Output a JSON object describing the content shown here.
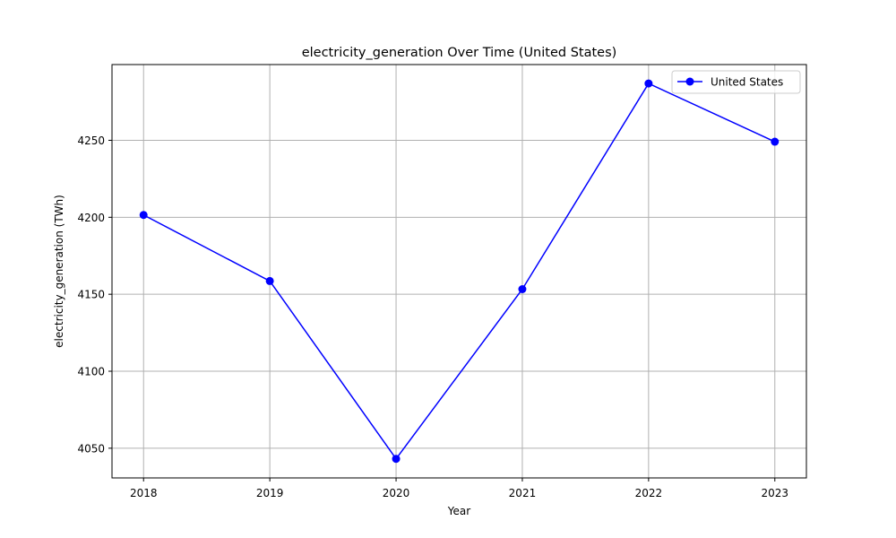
{
  "chart_data": {
    "type": "line",
    "title": "electricity_generation Over Time (United States)",
    "xlabel": "Year",
    "ylabel": "electricity_generation (TWh)",
    "x": [
      2018,
      2019,
      2020,
      2021,
      2022,
      2023
    ],
    "x_tick_labels": [
      "2018",
      "2019",
      "2020",
      "2021",
      "2022",
      "2023"
    ],
    "xlim": [
      2017.75,
      2023.25
    ],
    "y_ticks": [
      4050,
      4100,
      4150,
      4200,
      4250
    ],
    "y_tick_labels": [
      "4050",
      "4100",
      "4150",
      "4200",
      "4250"
    ],
    "ylim": [
      4030.7,
      4299.2
    ],
    "grid": true,
    "legend_position": "upper right",
    "series": [
      {
        "name": "United States",
        "color": "#0000ff",
        "marker": "circle",
        "values": [
          4201.5,
          4158.6,
          4043.1,
          4153.3,
          4286.9,
          4249.1
        ]
      }
    ]
  }
}
